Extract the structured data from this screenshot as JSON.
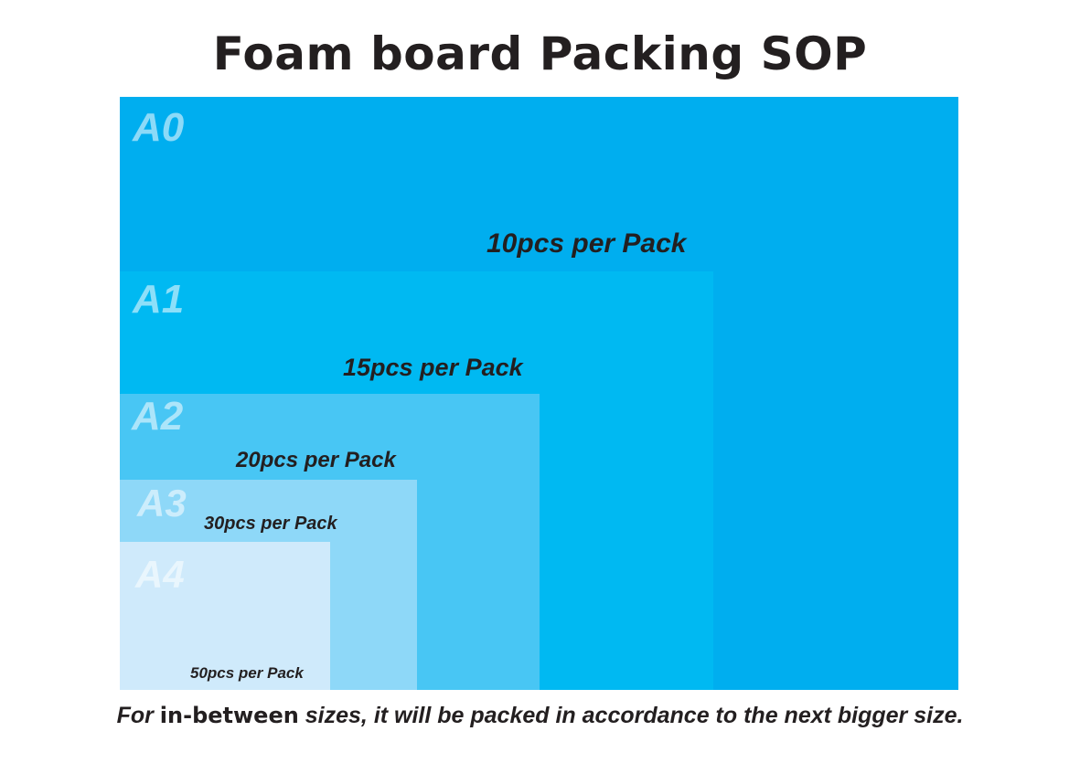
{
  "title": "Foam board Packing SOP",
  "sheets": [
    {
      "size": "A0",
      "pack": "10pcs per Pack",
      "color": "#00aeef"
    },
    {
      "size": "A1",
      "pack": "15pcs per Pack",
      "color": "#00b9f2"
    },
    {
      "size": "A2",
      "pack": "20pcs per Pack",
      "color": "#48c6f4"
    },
    {
      "size": "A3",
      "pack": "30pcs per Pack",
      "color": "#8ed8f8"
    },
    {
      "size": "A4",
      "pack": "50pcs per Pack",
      "color": "#cfeafb"
    }
  ],
  "footer": {
    "prefix": "For",
    "emphasis": "in-between",
    "suffix": "sizes, it will be packed in accordance to the next bigger size."
  },
  "colors": {
    "text": "#231f20",
    "background": "#ffffff"
  }
}
